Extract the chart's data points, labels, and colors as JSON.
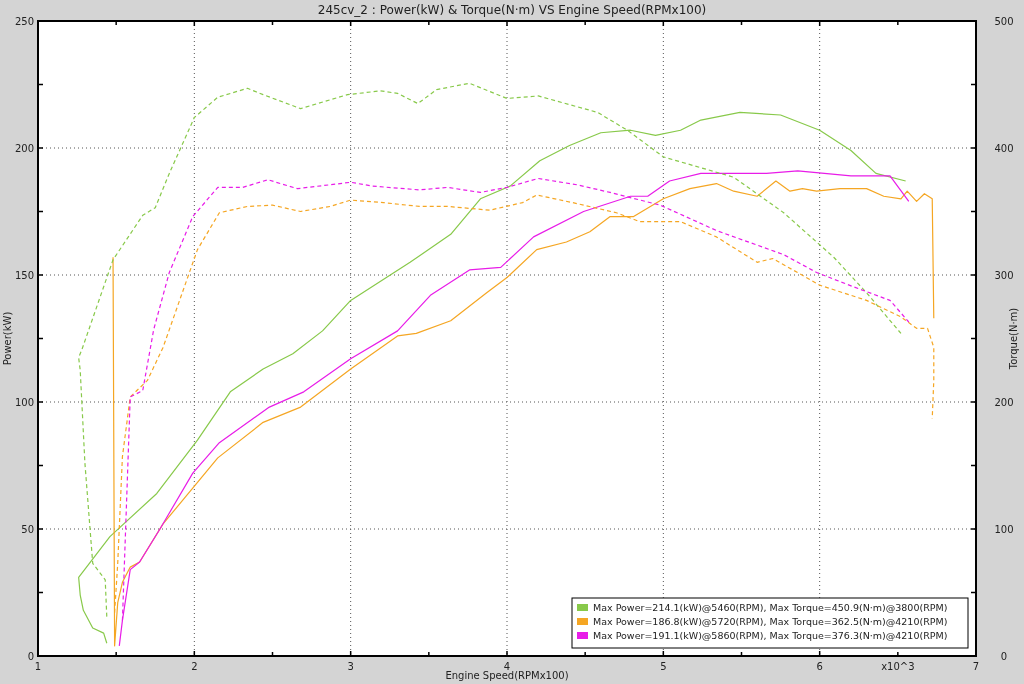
{
  "chart_data": {
    "type": "line",
    "title": "245cv_2 : Power(kW) & Torque(N·m) VS Engine Speed(RPMx100)",
    "xlabel": "Engine Speed(RPMx100)",
    "ylabel": "Power(kW)",
    "y2label": "Torque(N·m)",
    "annotations": [
      "x10^3"
    ],
    "xlim": [
      1,
      7
    ],
    "xticks": [
      1,
      {
        "value": 1.5,
        "label": null
      },
      2,
      {
        "value": 2.5,
        "label": null
      },
      3,
      {
        "value": 3.5,
        "label": null
      },
      4,
      {
        "value": 4.5,
        "label": null
      },
      5,
      {
        "value": 5.5,
        "label": null
      },
      6,
      {
        "value": 6.5,
        "label": null
      },
      7
    ],
    "ylim": [
      0,
      250
    ],
    "yticks": [
      0,
      {
        "value": 25,
        "label": null
      },
      50,
      {
        "value": 75,
        "label": null
      },
      100,
      {
        "value": 125,
        "label": null
      },
      150,
      {
        "value": 175,
        "label": null
      },
      200,
      {
        "value": 225,
        "label": null
      },
      250
    ],
    "y2lim": [
      0,
      500
    ],
    "y2ticks": [
      0,
      {
        "value": 50,
        "label": null
      },
      100,
      {
        "value": 150,
        "label": null
      },
      200,
      {
        "value": 250,
        "label": null
      },
      300,
      {
        "value": 350,
        "label": null
      },
      400,
      {
        "value": 450,
        "label": null
      },
      500
    ],
    "grid": true,
    "legend": "bottom right",
    "marker": "none",
    "series": [
      {
        "name": "Max Power=214.1(kW)@5460(RPM), Max Torque=450.9(N·m)@3800(RPM)",
        "color": "#88c94a",
        "line_style": "solid",
        "x": [
          1.44,
          1.42,
          1.35,
          1.29,
          1.27,
          1.26,
          1.46,
          1.76,
          2.02,
          2.23,
          2.44,
          2.63,
          2.82,
          3.0,
          3.38,
          3.64,
          3.83,
          4.02,
          4.21,
          4.4,
          4.6,
          4.79,
          4.95,
          5.11,
          5.24,
          5.49,
          5.75,
          6.0,
          6.2,
          6.36,
          6.55
        ],
        "values": [
          5,
          9,
          11,
          18,
          24,
          31,
          47,
          64,
          85,
          104,
          113,
          119,
          128,
          140,
          155,
          166,
          180,
          185,
          195,
          201,
          206,
          207,
          205,
          207,
          211,
          214,
          213,
          207,
          199,
          190,
          187
        ]
      },
      {
        "name": "Max Power=186.8(kW)@5720(RPM), Max Torque=362.5(N·m)@4210(RPM)",
        "color": "#f5a623",
        "line_style": "solid",
        "x": [
          1.48,
          1.49,
          1.51,
          1.54,
          1.59,
          1.65,
          1.8,
          2.15,
          2.44,
          2.68,
          3.0,
          3.3,
          3.42,
          3.64,
          3.87,
          4.0,
          4.19,
          4.38,
          4.53,
          4.66,
          4.81,
          5.0,
          5.17,
          5.34,
          5.45,
          5.6,
          5.72,
          5.81,
          5.89,
          5.98,
          6.13,
          6.3,
          6.41,
          6.52,
          6.56,
          6.62,
          6.67,
          6.72,
          6.73
        ],
        "values": [
          157,
          4,
          21,
          29,
          35,
          37,
          52,
          78,
          92,
          98,
          113,
          126,
          127,
          132,
          143,
          149,
          160,
          163,
          167,
          173,
          173,
          180,
          184,
          186,
          183,
          181,
          187,
          183,
          184,
          183,
          184,
          184,
          181,
          180,
          183,
          179,
          182,
          180,
          133
        ]
      },
      {
        "name": "Max Power=191.1(kW)@5860(RPM), Max Torque=376.3(N·m)@4210(RPM)",
        "color": "#e81ce8",
        "line_style": "solid",
        "x": [
          1.52,
          1.54,
          1.59,
          1.65,
          1.78,
          1.99,
          2.16,
          2.48,
          2.7,
          3.0,
          3.3,
          3.51,
          3.76,
          3.96,
          4.17,
          4.49,
          4.79,
          4.9,
          5.04,
          5.24,
          5.66,
          5.86,
          6.2,
          6.45,
          6.57
        ],
        "values": [
          4,
          14,
          34,
          37,
          50,
          72,
          84,
          98,
          104,
          117,
          128,
          142,
          152,
          153,
          165,
          175,
          181,
          181,
          187,
          190,
          190,
          191,
          189,
          189,
          179
        ]
      },
      {
        "color": "#88c94a",
        "axis": "y2",
        "line_style": "dashed",
        "x": [
          1.44,
          1.43,
          1.35,
          1.3,
          1.27,
          1.26,
          1.28,
          1.48,
          1.67,
          1.75,
          1.84,
          2.0,
          2.15,
          2.34,
          2.44,
          2.68,
          2.98,
          3.19,
          3.3,
          3.43,
          3.55,
          3.76,
          4.0,
          4.2,
          4.58,
          4.77,
          5.0,
          5.45,
          5.77,
          6.09,
          6.3,
          6.52
        ],
        "values": [
          31,
          60,
          73,
          152,
          225,
          235,
          241,
          312,
          347,
          353,
          380,
          424,
          440,
          447,
          442,
          431,
          442,
          445,
          443,
          435,
          446,
          451,
          439,
          441,
          428,
          414,
          393,
          377,
          349,
          314,
          286,
          254
        ]
      },
      {
        "color": "#f5a623",
        "axis": "y2",
        "line_style": "dashed",
        "x": [
          1.49,
          1.51,
          1.54,
          1.59,
          1.7,
          1.8,
          2.02,
          2.16,
          2.34,
          2.5,
          2.68,
          2.87,
          3.0,
          3.21,
          3.44,
          3.62,
          3.89,
          4.1,
          4.19,
          4.42,
          4.7,
          4.85,
          5.11,
          5.34,
          5.6,
          5.7,
          6.0,
          6.3,
          6.52,
          6.62,
          6.69,
          6.73,
          6.73,
          6.72
        ],
        "values": [
          34,
          73,
          157,
          204,
          217,
          243,
          320,
          349,
          354,
          355,
          350,
          354,
          359,
          357,
          354,
          354,
          351,
          357,
          363,
          357,
          349,
          342,
          342,
          330,
          310,
          313,
          292,
          280,
          267,
          258,
          258,
          243,
          217,
          187
        ]
      },
      {
        "color": "#e81ce8",
        "axis": "y2",
        "line_style": "dashed",
        "x": [
          1.54,
          1.59,
          1.67,
          1.74,
          1.84,
          1.99,
          2.15,
          2.31,
          2.47,
          2.66,
          3.0,
          3.14,
          3.44,
          3.62,
          3.83,
          4.0,
          4.2,
          4.45,
          4.66,
          4.98,
          5.34,
          5.77,
          5.98,
          6.21,
          6.45,
          6.57
        ],
        "values": [
          28,
          204,
          209,
          257,
          302,
          346,
          369,
          369,
          375,
          368,
          373,
          370,
          367,
          369,
          365,
          369,
          376,
          371,
          365,
          355,
          335,
          316,
          302,
          291,
          280,
          263
        ]
      }
    ]
  }
}
